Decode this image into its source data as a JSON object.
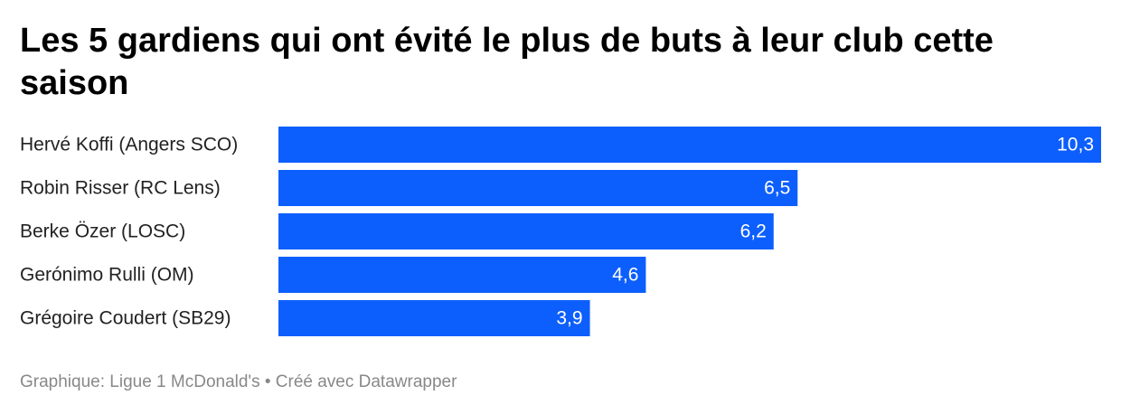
{
  "chart_data": {
    "type": "bar",
    "orientation": "horizontal",
    "title": "Les 5 gardiens qui ont évité le plus de buts à leur club cette saison",
    "categories": [
      "Hervé Koffi (Angers SCO)",
      "Robin Risser (RC Lens)",
      "Berke Özer (LOSC)",
      "Gerónimo Rulli (OM)",
      "Grégoire Coudert (SB29)"
    ],
    "values": [
      10.3,
      6.5,
      6.2,
      4.6,
      3.9
    ],
    "value_labels": [
      "10,3",
      "6,5",
      "6,2",
      "4,6",
      "3,9"
    ],
    "color": "#0d5ffd",
    "xlim": [
      0,
      10.3
    ],
    "footer": "Graphique: Ligue 1 McDonald's • Créé avec Datawrapper"
  }
}
